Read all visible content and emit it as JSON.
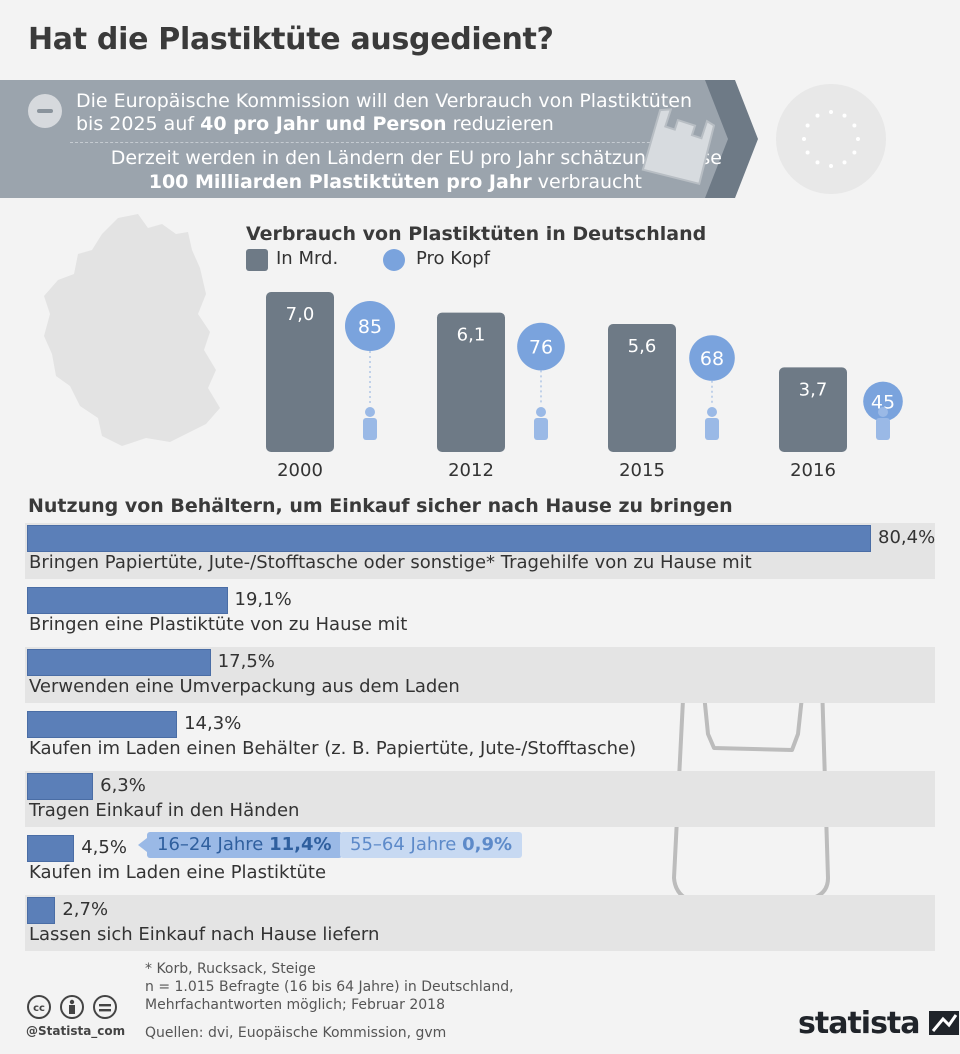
{
  "title": "Hat die Plastiktüte ausgedient?",
  "banner": {
    "line1a_pre": "Die Europäische Kommission will den Verbrauch von Plastiktüten",
    "line1b_pre": "bis 2025 auf ",
    "line1b_bold": "40 pro Jahr und Person",
    "line1b_post": " reduzieren",
    "line2a": "Derzeit werden in den Ländern der EU pro Jahr schätzungsweise",
    "line2b_bold": "100 Milliarden Plastiktüten pro Jahr",
    "line2b_post": " verbraucht",
    "colors": {
      "banner": "#9ba4ad",
      "arrow": "#6e7a86"
    }
  },
  "chart_data": [
    {
      "type": "bar",
      "title": "Verbrauch von Plastiktüten in Deutschland",
      "categories": [
        "2000",
        "2012",
        "2015",
        "2016"
      ],
      "series": [
        {
          "name": "In Mrd.",
          "values": [
            7.0,
            6.1,
            5.6,
            3.7
          ],
          "labels": [
            "7,0",
            "6,1",
            "5,6",
            "3,7"
          ],
          "color": "#6e7a86"
        },
        {
          "name": "Pro Kopf",
          "values": [
            85,
            76,
            68,
            45
          ],
          "labels": [
            "85",
            "76",
            "68",
            "45"
          ],
          "color": "#7aa3dd"
        }
      ],
      "ylim": [
        0,
        7.0
      ]
    },
    {
      "type": "bar",
      "orientation": "horizontal",
      "title": "Nutzung von Behältern, um Einkauf sicher nach Hause zu bringen",
      "categories": [
        "Bringen Papiertüte, Jute-/Stofftasche oder sonstige* Tragehilfe von zu Hause mit",
        "Bringen eine Plastiktüte von zu Hause mit",
        "Verwenden eine Umverpackung aus dem Laden",
        "Kaufen im Laden einen Behälter (z. B. Papiertüte, Jute-/Stofftasche)",
        "Tragen Einkauf in den Händen",
        "Kaufen im Laden eine Plastiktüte",
        "Lassen sich Einkauf nach Hause liefern"
      ],
      "values": [
        80.4,
        19.1,
        17.5,
        14.3,
        6.3,
        4.5,
        2.7
      ],
      "value_labels": [
        "80,4%",
        "19,1%",
        "17,5%",
        "14,3%",
        "6,3%",
        "4,5%",
        "2,7%"
      ],
      "annotations": [
        {
          "prefix": "16–24 Jahre ",
          "bold": "11,4%"
        },
        {
          "prefix": "55–64 Jahre ",
          "bold": "0,9%"
        }
      ],
      "xlim": [
        0,
        80.4
      ],
      "color": "#5b7fb8"
    }
  ],
  "footer": {
    "note1": "* Korb, Rucksack, Steige",
    "note2": "n = 1.015 Befragte (16 bis 64 Jahre) in Deutschland,",
    "note3": "Mehrfachantworten möglich; Februar 2018",
    "sources": "Quellen: dvi, Euopäische Kommission, gvm",
    "handle": "@Statista_com",
    "brand": "statista"
  }
}
